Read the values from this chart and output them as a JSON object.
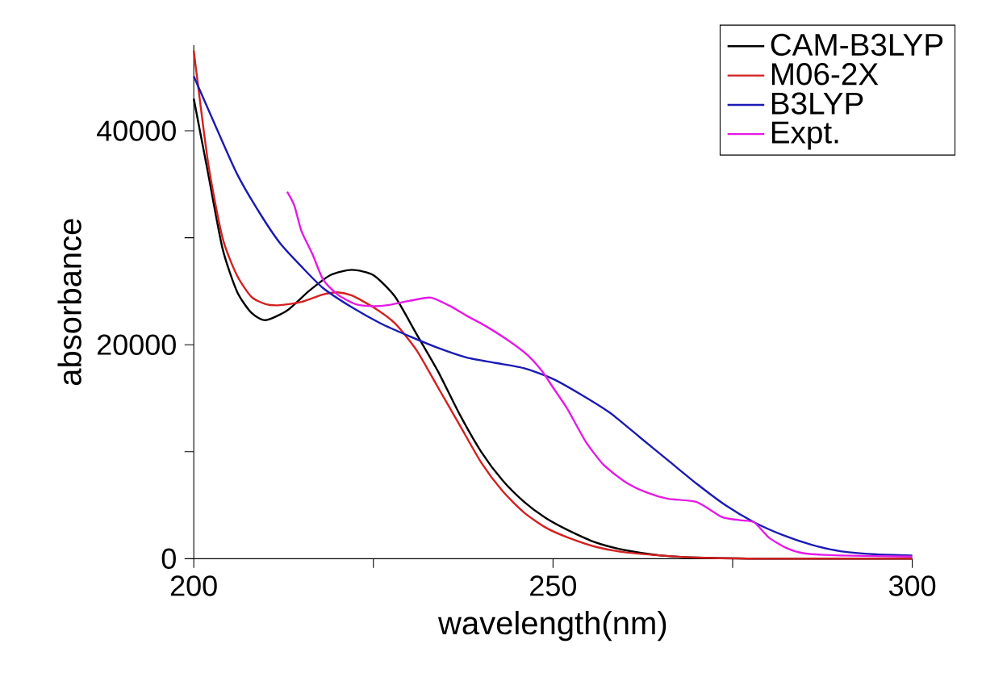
{
  "chart_data": {
    "type": "line",
    "xlabel": "wavelength(nm)",
    "ylabel": "absorbance",
    "xlim": [
      200,
      300
    ],
    "xticks": [
      200,
      {
        "value": 225,
        "label": null
      },
      250,
      {
        "value": 275,
        "label": null
      },
      300
    ],
    "ylim": [
      0,
      48000
    ],
    "yticks": [
      0,
      {
        "value": 10000,
        "label": null
      },
      20000,
      {
        "value": 30000,
        "label": null
      },
      40000
    ],
    "grid": false,
    "legend": "top right",
    "marker": "none",
    "line_style": "solid",
    "series": [
      {
        "name": "CAM-B3LYP",
        "color": "#000000",
        "x": [
          200,
          202,
          204,
          206,
          208,
          210,
          213,
          216,
          219,
          222,
          225,
          228,
          231,
          234,
          237,
          240,
          243,
          246,
          249,
          252,
          256,
          260,
          265,
          270,
          280,
          300
        ],
        "values": [
          43000,
          36000,
          29000,
          25000,
          23000,
          22300,
          23200,
          25000,
          26500,
          27000,
          26500,
          24500,
          21000,
          17500,
          13500,
          10000,
          7300,
          5300,
          3800,
          2700,
          1500,
          800,
          300,
          100,
          0,
          0
        ]
      },
      {
        "name": "M06-2X",
        "color": "#d42020",
        "x": [
          200,
          202,
          204,
          206,
          208,
          210,
          212,
          215,
          218,
          220,
          222,
          225,
          228,
          231,
          234,
          237,
          240,
          243,
          246,
          249,
          252,
          256,
          260,
          265,
          270,
          280,
          300
        ],
        "values": [
          47500,
          37000,
          30000,
          26500,
          24500,
          23800,
          23700,
          24000,
          24700,
          24900,
          24600,
          23500,
          22000,
          19500,
          16000,
          12500,
          9000,
          6300,
          4300,
          2900,
          2000,
          1100,
          600,
          300,
          100,
          0,
          0
        ]
      },
      {
        "name": "B3LYP",
        "color": "#1a1ab4",
        "x": [
          200,
          203,
          206,
          209,
          212,
          215,
          218,
          222,
          226,
          230,
          234,
          238,
          242,
          246,
          250,
          254,
          258,
          262,
          266,
          270,
          274,
          278,
          282,
          286,
          290,
          295,
          300
        ],
        "values": [
          45100,
          40500,
          36000,
          32500,
          29500,
          27300,
          25300,
          23500,
          22000,
          20800,
          19700,
          18800,
          18300,
          17800,
          16800,
          15300,
          13600,
          11400,
          9200,
          7000,
          5000,
          3400,
          2200,
          1300,
          700,
          400,
          300
        ]
      },
      {
        "name": "Expt.",
        "color": "#e619e6",
        "x": [
          213,
          214,
          215,
          216.5,
          218,
          220,
          222.5,
          225,
          227,
          230,
          233,
          236,
          238,
          240.5,
          244,
          246.5,
          248.5,
          250,
          252,
          254.5,
          257,
          260,
          263,
          266,
          270,
          273.5,
          276,
          278,
          280,
          282.5,
          285,
          290,
          300
        ],
        "values": [
          34300,
          33000,
          30600,
          28500,
          26100,
          24700,
          23800,
          23600,
          23700,
          24100,
          24400,
          23500,
          22700,
          21800,
          20300,
          19000,
          17500,
          16000,
          14000,
          11000,
          8800,
          7200,
          6200,
          5600,
          5300,
          3900,
          3600,
          3400,
          2000,
          1000,
          500,
          300,
          200
        ]
      }
    ]
  }
}
